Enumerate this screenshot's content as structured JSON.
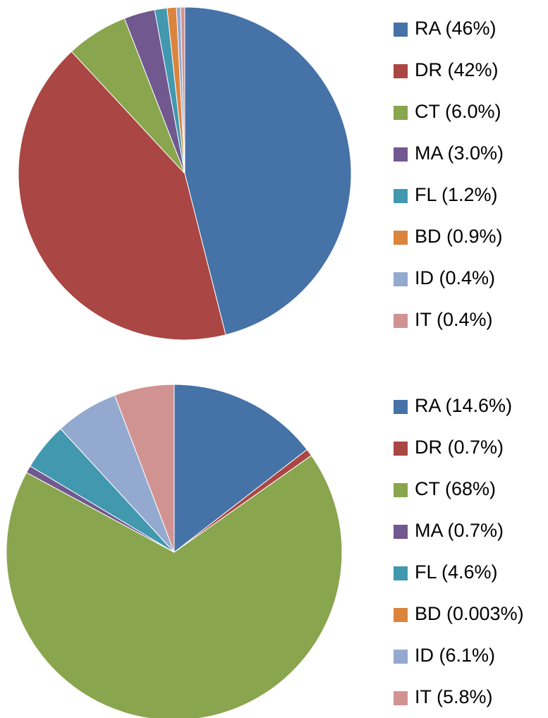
{
  "chart_data": [
    {
      "type": "pie",
      "categories": [
        "RA (46%)",
        "DR (42%)",
        "CT (6.0%)",
        "MA (3.0%)",
        "FL (1.2%)",
        "BD (0.9%)",
        "ID (0.4%)",
        "IT (0.4%)"
      ],
      "values": [
        46,
        42,
        6.0,
        3.0,
        1.2,
        0.9,
        0.4,
        0.4
      ],
      "colors": [
        "#4572a7",
        "#aa4643",
        "#89a54e",
        "#71588f",
        "#4198af",
        "#db843d",
        "#93a9cf",
        "#d19392"
      ],
      "legend": "right"
    },
    {
      "type": "pie",
      "categories": [
        "RA (14.6%)",
        "DR (0.7%)",
        "CT (68%)",
        "MA (0.7%)",
        "FL (4.6%)",
        "BD (0.003%)",
        "ID (6.1%)",
        "IT (5.8%)"
      ],
      "values": [
        14.6,
        0.7,
        68,
        0.7,
        4.6,
        0.003,
        6.1,
        5.8
      ],
      "colors": [
        "#4572a7",
        "#aa4643",
        "#89a54e",
        "#71588f",
        "#4198af",
        "#db843d",
        "#93a9cf",
        "#d19392"
      ],
      "legend": "right"
    }
  ]
}
